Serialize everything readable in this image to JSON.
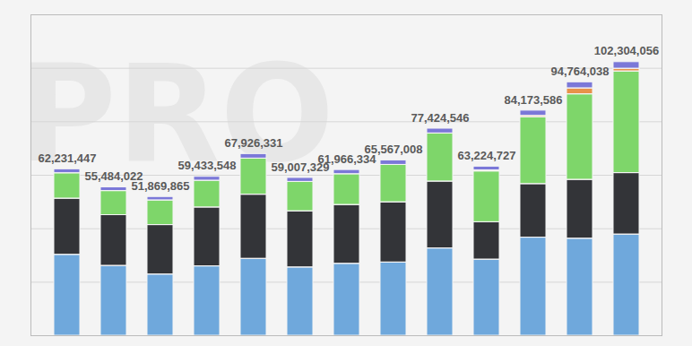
{
  "chart_data": {
    "type": "bar",
    "stacked": true,
    "categories": [
      null,
      null,
      null,
      null,
      null,
      null,
      null,
      null,
      null,
      null,
      null,
      null,
      null
    ],
    "series": [
      {
        "color": "#6fa8dc",
        "values": [
          30231447,
          26084022,
          22869865,
          25933548,
          28726331,
          25507329,
          26866334,
          27367008,
          32624546,
          28424727,
          36673586,
          36264038,
          37804056
        ]
      },
      {
        "color": "#333438",
        "values": [
          21000000,
          19000000,
          18500000,
          22000000,
          24000000,
          21000000,
          22000000,
          22500000,
          25000000,
          14000000,
          20000000,
          22000000,
          23000000
        ]
      },
      {
        "color": "#7ed66a",
        "values": [
          9500000,
          9000000,
          9200000,
          10000000,
          13500000,
          11000000,
          11500000,
          14000000,
          18000000,
          19000000,
          25000000,
          32000000,
          38000000
        ]
      },
      {
        "color": "#e8924a",
        "values": [
          0,
          0,
          0,
          0,
          0,
          0,
          0,
          0,
          0,
          400000,
          500000,
          2200000,
          1000000
        ]
      },
      {
        "color": "#7b78d8",
        "values": [
          1500000,
          1400000,
          1300000,
          1500000,
          1700000,
          1500000,
          1600000,
          1700000,
          1800000,
          1400000,
          2000000,
          2300000,
          2500000
        ]
      }
    ],
    "totals": [
      62231447,
      55484022,
      51869865,
      59433548,
      67926331,
      59007329,
      61966334,
      65567008,
      77424546,
      63224727,
      84173586,
      94764038,
      102304056
    ],
    "total_labels": [
      "62,231,447",
      "55,484,022",
      "51,869,865",
      "59,433,548",
      "67,926,331",
      "59,007,329",
      "61,966,334",
      "65,567,008",
      "77,424,546",
      "63,224,727",
      "84,173,586",
      "94,764,038",
      "102,304,056"
    ],
    "annotations": [
      "PRO"
    ],
    "ylim": [
      0,
      120000000
    ],
    "yticks": [
      0,
      20000000,
      40000000,
      60000000,
      80000000,
      100000000,
      120000000
    ],
    "grid": true,
    "data_labels": false,
    "tick_labels": false
  }
}
